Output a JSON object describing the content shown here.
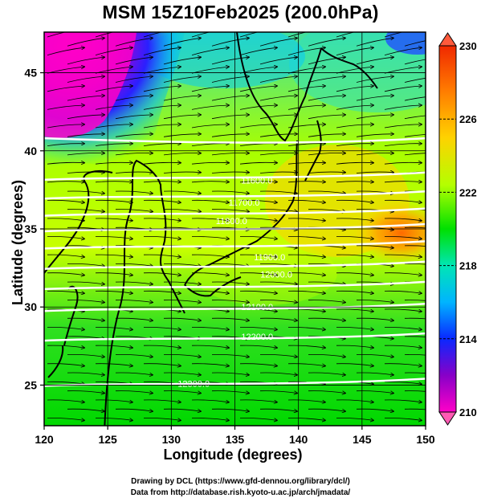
{
  "title": "MSM 15Z10Feb2025 (200.0hPa)",
  "xlabel": "Longitude (degrees)",
  "ylabel": "Latitude  (degrees)",
  "credits": {
    "line1": "Drawing by DCL (https://www.gfd-dennou.org/library/dcl/)",
    "line2": "Data from http://database.rish.kyoto-u.ac.jp/arch/jmadata/"
  },
  "map": {
    "lon_range": [
      120,
      150
    ],
    "lat_range": [
      22.4,
      47.6
    ],
    "x_ticks": [
      "120",
      "125",
      "130",
      "135",
      "140",
      "145",
      "150"
    ],
    "y_ticks": [
      "25",
      "30",
      "35",
      "40",
      "45"
    ],
    "gridlines": true,
    "field": "temperature (K), color shading",
    "vectors": "wind streamlines with arrowheads, mostly westerly",
    "contours": "geopotential height, white lines"
  },
  "contour_labels": [
    "11600.0",
    "11700.0",
    "11800.0",
    "11900.0",
    "12000.0",
    "12100.0",
    "12200.0",
    "12300.0"
  ],
  "colorbar": {
    "min": 210,
    "max": 230,
    "tick_labels": [
      "230",
      "226",
      "222",
      "218",
      "214",
      "210"
    ],
    "colors": [
      "#ff0000",
      "#ff6a00",
      "#ffd200",
      "#a8ff00",
      "#00e000",
      "#00e6c8",
      "#00aaff",
      "#0a28ff",
      "#8800c8",
      "#ff00c8"
    ]
  }
}
